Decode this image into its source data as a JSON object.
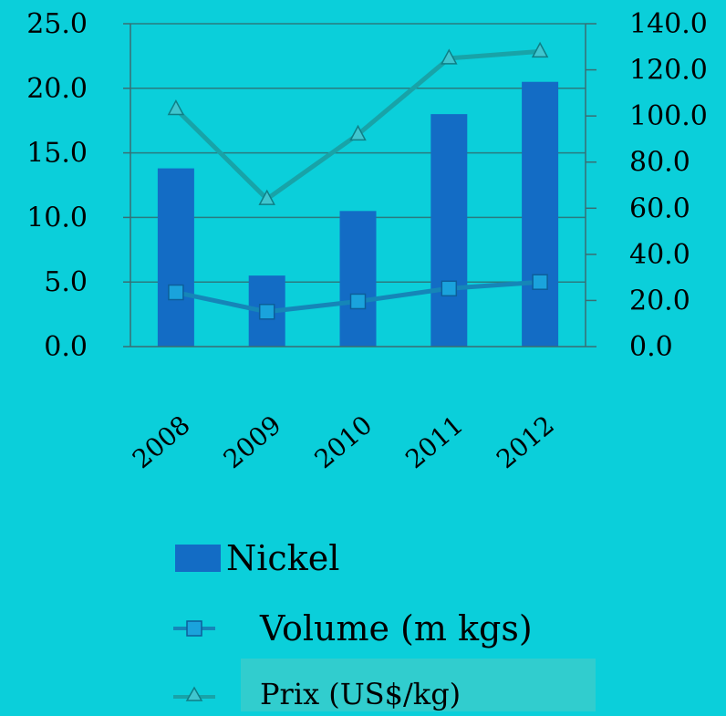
{
  "chart_data": {
    "type": "bar",
    "categories": [
      "2008",
      "2009",
      "2010",
      "2011",
      "2012"
    ],
    "series": [
      {
        "name": "Nickel",
        "kind": "bar",
        "axis": "left",
        "color": "#136cc5",
        "values": [
          13.8,
          5.5,
          10.5,
          18.0,
          20.5
        ]
      },
      {
        "name": "Volume (m kgs)",
        "kind": "line",
        "axis": "left",
        "marker": "square",
        "color": "#1586b8",
        "marker_color": "#1aa3dc",
        "values": [
          4.2,
          2.7,
          3.5,
          4.5,
          5.0
        ]
      },
      {
        "name": "Prix (US$/kg)",
        "kind": "line",
        "axis": "right",
        "marker": "triangle",
        "color": "#18a3a8",
        "marker_color": "#3fc6cf",
        "values": [
          103.0,
          64.0,
          92.0,
          125.0,
          128.0
        ]
      }
    ],
    "y_left": {
      "ylim": [
        0,
        25
      ],
      "ticks": [
        "0.0",
        "5.0",
        "10.0",
        "15.0",
        "20.0",
        "25.0"
      ]
    },
    "y_right": {
      "ylim": [
        0,
        140
      ],
      "ticks": [
        "0.0",
        "20.0",
        "40.0",
        "60.0",
        "80.0",
        "100.0",
        "120.0",
        "140.0"
      ]
    },
    "xlabel": "",
    "ylabel": "",
    "grid": true,
    "legend_position": "bottom-center"
  },
  "legend": {
    "items": [
      "Nickel",
      "Volume (m kgs)",
      "Prix (US$/kg)"
    ]
  },
  "colors": {
    "background": "#0bcfda",
    "grid": "#2a7b80",
    "axis": "#3a6d72",
    "legend_highlight": "#31cdce"
  }
}
